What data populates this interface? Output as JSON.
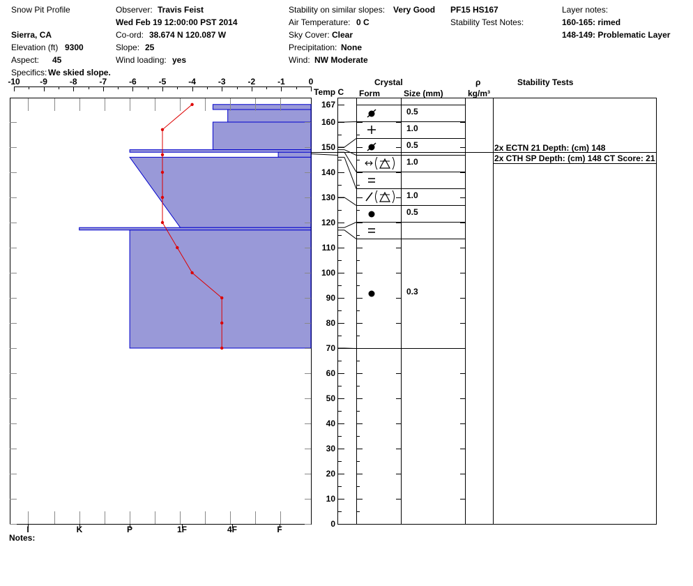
{
  "header": {
    "title": "Snow Pit Profile",
    "location": "Sierra, CA",
    "elevation_label": "Elevation (ft)",
    "elevation": "9300",
    "aspect_label": "Aspect:",
    "aspect": "45",
    "specifics_label": "Specifics:",
    "specifics": "We skied slope.",
    "observer_label": "Observer:",
    "observer": "Travis Feist",
    "datetime": "Wed Feb 19 12:00:00 PST 2014",
    "coord_label": "Co-ord:",
    "coord": "38.674 N 120.087 W",
    "slope_label": "Slope:",
    "slope": "25",
    "wind_loading_label": "Wind loading:",
    "wind_loading": "yes",
    "stability_label": "Stability on similar slopes:",
    "stability": "Very Good",
    "air_temp_label": "Air Temperature:",
    "air_temp": "0 C",
    "sky_label": "Sky Cover:",
    "sky": "Clear",
    "precip_label": "Precipitation:",
    "precip": "None",
    "wind_label": "Wind:",
    "wind": "NW Moderate",
    "pit_id": "PF15 HS167",
    "stability_notes_label": "Stability Test Notes:",
    "layer_notes_label": "Layer notes:",
    "layer_notes": [
      "160-165: rimed",
      "148-149: Problematic Layer"
    ]
  },
  "table_headers": {
    "temp": "Temp C",
    "crystal": "Crystal",
    "form": "Form",
    "size": "Size (mm)",
    "rho": "ρ",
    "density_unit": "kg/m³",
    "stability_tests": "Stability Tests"
  },
  "notes_label": "Notes:",
  "colors": {
    "hardness_fill": "#9999d8",
    "hardness_stroke": "#0000cc",
    "temp_line": "#dd0000"
  },
  "chart_data": {
    "type": "line",
    "temperature_axis": {
      "label": "Temp C",
      "range": [
        -10,
        0
      ],
      "ticks": [
        -10,
        -9,
        -8,
        -7,
        -6,
        -5,
        -4,
        -3,
        -2,
        -1,
        0
      ]
    },
    "height_axis": {
      "range": [
        0,
        167
      ],
      "ticks": [
        0,
        10,
        20,
        30,
        40,
        50,
        60,
        70,
        80,
        90,
        100,
        110,
        120,
        130,
        140,
        150,
        160,
        167
      ]
    },
    "hardness_axis": {
      "ticks": [
        "I",
        "K",
        "P",
        "1F",
        "4F",
        "F"
      ]
    },
    "temperature_profile": [
      {
        "height": 167,
        "temp": -4
      },
      {
        "height": 157,
        "temp": -5
      },
      {
        "height": 147,
        "temp": -5
      },
      {
        "height": 140,
        "temp": -5
      },
      {
        "height": 130,
        "temp": -5
      },
      {
        "height": 120,
        "temp": -5
      },
      {
        "height": 110,
        "temp": -4.5
      },
      {
        "height": 100,
        "temp": -4
      },
      {
        "height": 90,
        "temp": -3
      },
      {
        "height": 80,
        "temp": -3
      },
      {
        "height": 70,
        "temp": -3
      }
    ],
    "hardness_layers": [
      {
        "top": 167,
        "bottom": 165,
        "hardness_top": -3.3,
        "hardness_bottom": -3.3
      },
      {
        "top": 165,
        "bottom": 160,
        "hardness_top": -2.8,
        "hardness_bottom": -2.8
      },
      {
        "top": 160,
        "bottom": 149,
        "hardness_top": -3.3,
        "hardness_bottom": -3.3
      },
      {
        "top": 149,
        "bottom": 148,
        "hardness_top": -6.1,
        "hardness_bottom": -6.1
      },
      {
        "top": 148,
        "bottom": 146,
        "hardness_top": -1.1,
        "hardness_bottom": -1.1
      },
      {
        "top": 146,
        "bottom": 118,
        "hardness_top": -6.1,
        "hardness_bottom": -4.4
      },
      {
        "top": 118,
        "bottom": 117,
        "hardness_top": -7.8,
        "hardness_bottom": -7.8
      },
      {
        "top": 117,
        "bottom": 70,
        "hardness_top": -6.1,
        "hardness_bottom": -6.1
      }
    ],
    "grain_layers": [
      {
        "top": 167,
        "bottom": 160,
        "form": "rimed",
        "size": "0.5"
      },
      {
        "top": 160,
        "bottom": 150,
        "form": "precip",
        "size": "1.0"
      },
      {
        "top": 150,
        "bottom": 149,
        "form": "rimed",
        "size": "0.5"
      },
      {
        "top": 149,
        "bottom": 148,
        "form": "depth-hoar-mixed",
        "size": "1.0"
      },
      {
        "top": 148,
        "bottom": 146,
        "form": "rounded-faceted",
        "size": ""
      },
      {
        "top": 146,
        "bottom": 130,
        "form": "facet-depth-hoar",
        "size": "1.0"
      },
      {
        "top": 130,
        "bottom": 118,
        "form": "rounded",
        "size": "0.5"
      },
      {
        "top": 118,
        "bottom": 117,
        "form": "rounded-faceted",
        "size": ""
      },
      {
        "top": 117,
        "bottom": 70,
        "form": "rounded",
        "size": "0.3"
      }
    ],
    "stability_tests": [
      "2x ECTN 21   Depth: (cm) 148",
      "2x CTH SP Depth: (cm) 148 CT Score: 21"
    ]
  }
}
